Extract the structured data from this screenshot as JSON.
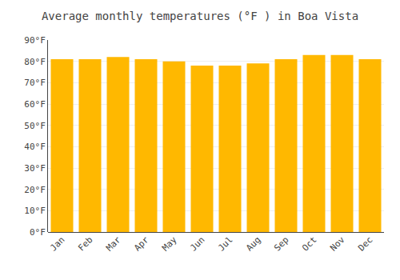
{
  "chart_data": {
    "type": "bar",
    "title": "Average monthly temperatures (°F ) in Boa Vista",
    "categories": [
      "Jan",
      "Feb",
      "Mar",
      "Apr",
      "May",
      "Jun",
      "Jul",
      "Aug",
      "Sep",
      "Oct",
      "Nov",
      "Dec"
    ],
    "values": [
      81,
      81,
      82,
      81,
      80,
      78,
      78,
      79,
      81,
      83,
      83,
      81
    ],
    "color": "#FFB800",
    "ylim": [
      0,
      90
    ],
    "yticks": [
      {
        "value": 0,
        "label": "0°F"
      },
      {
        "value": 10,
        "label": "10°F"
      },
      {
        "value": 20,
        "label": "20°F"
      },
      {
        "value": 30,
        "label": "30°F"
      },
      {
        "value": 40,
        "label": "40°F"
      },
      {
        "value": 50,
        "label": "50°F"
      },
      {
        "value": 60,
        "label": "60°F"
      },
      {
        "value": 70,
        "label": "70°F"
      },
      {
        "value": 80,
        "label": "80°F"
      },
      {
        "value": 90,
        "label": "90°F"
      }
    ],
    "grid": true
  }
}
